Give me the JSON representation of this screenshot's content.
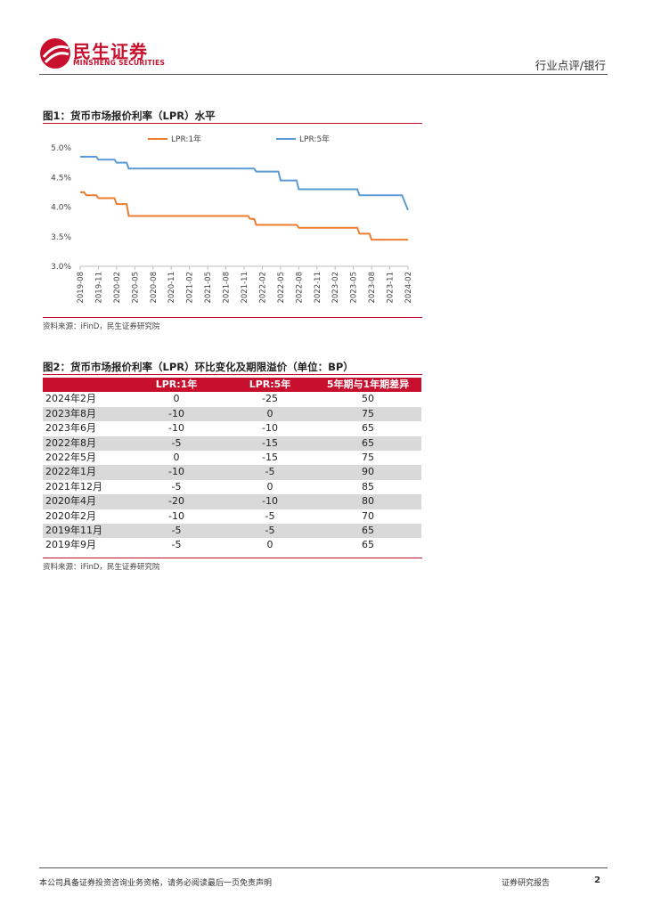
{
  "header": {
    "logo_cn": "民生证券",
    "logo_en": "MINSHENG SECURITIES",
    "category": "行业点评/银行",
    "brand_color": "#c8102e"
  },
  "figure1": {
    "title": "图1：货币市场报价利率（LPR）水平",
    "source": "资料来源：iFinD，民生证券研究院",
    "chart_data": {
      "type": "line",
      "title": "",
      "xlabel": "",
      "ylabel": "",
      "ylim": [
        3.0,
        5.0
      ],
      "y_ticks": [
        "3.0%",
        "3.5%",
        "4.0%",
        "4.5%",
        "5.0%"
      ],
      "x_ticks": [
        "2019-08",
        "2019-11",
        "2020-02",
        "2020-05",
        "2020-08",
        "2020-11",
        "2021-02",
        "2021-05",
        "2021-08",
        "2021-11",
        "2022-02",
        "2022-05",
        "2022-08",
        "2022-11",
        "2023-02",
        "2023-05",
        "2023-08",
        "2023-11",
        "2024-02"
      ],
      "legend_position": "top-center",
      "grid": false,
      "x": [
        "2019-08",
        "2019-09",
        "2019-10",
        "2019-11",
        "2019-12",
        "2020-01",
        "2020-02",
        "2020-03",
        "2020-04",
        "2020-05",
        "2020-06",
        "2020-07",
        "2020-08",
        "2020-09",
        "2020-10",
        "2020-11",
        "2020-12",
        "2021-01",
        "2021-02",
        "2021-03",
        "2021-04",
        "2021-05",
        "2021-06",
        "2021-07",
        "2021-08",
        "2021-09",
        "2021-10",
        "2021-11",
        "2021-12",
        "2022-01",
        "2022-02",
        "2022-03",
        "2022-04",
        "2022-05",
        "2022-06",
        "2022-07",
        "2022-08",
        "2022-09",
        "2022-10",
        "2022-11",
        "2022-12",
        "2023-01",
        "2023-02",
        "2023-03",
        "2023-04",
        "2023-05",
        "2023-06",
        "2023-07",
        "2023-08",
        "2023-09",
        "2023-10",
        "2023-11",
        "2023-12",
        "2024-01",
        "2024-02"
      ],
      "series": [
        {
          "name": "LPR:1年",
          "color": "#ed7d31",
          "values": [
            4.25,
            4.2,
            4.2,
            4.15,
            4.15,
            4.15,
            4.05,
            4.05,
            3.85,
            3.85,
            3.85,
            3.85,
            3.85,
            3.85,
            3.85,
            3.85,
            3.85,
            3.85,
            3.85,
            3.85,
            3.85,
            3.85,
            3.85,
            3.85,
            3.85,
            3.85,
            3.85,
            3.85,
            3.8,
            3.7,
            3.7,
            3.7,
            3.7,
            3.7,
            3.7,
            3.7,
            3.65,
            3.65,
            3.65,
            3.65,
            3.65,
            3.65,
            3.65,
            3.65,
            3.65,
            3.65,
            3.55,
            3.55,
            3.45,
            3.45,
            3.45,
            3.45,
            3.45,
            3.45,
            3.45
          ]
        },
        {
          "name": "LPR:5年",
          "color": "#5b9bd5",
          "values": [
            4.85,
            4.85,
            4.85,
            4.8,
            4.8,
            4.8,
            4.75,
            4.75,
            4.65,
            4.65,
            4.65,
            4.65,
            4.65,
            4.65,
            4.65,
            4.65,
            4.65,
            4.65,
            4.65,
            4.65,
            4.65,
            4.65,
            4.65,
            4.65,
            4.65,
            4.65,
            4.65,
            4.65,
            4.65,
            4.6,
            4.6,
            4.6,
            4.6,
            4.45,
            4.45,
            4.45,
            4.3,
            4.3,
            4.3,
            4.3,
            4.3,
            4.3,
            4.3,
            4.3,
            4.3,
            4.3,
            4.2,
            4.2,
            4.2,
            4.2,
            4.2,
            4.2,
            4.2,
            4.2,
            3.95
          ]
        }
      ]
    }
  },
  "figure2": {
    "title": "图2：货币市场报价利率（LPR）环比变化及期限溢价（单位：BP）",
    "source": "资料来源：iFinD，民生证券研究院",
    "columns": [
      "",
      "LPR:1年",
      "LPR:5年",
      "5年期与1年期差异"
    ],
    "rows": [
      [
        "2024年2月",
        "0",
        "-25",
        "50"
      ],
      [
        "2023年8月",
        "-10",
        "0",
        "75"
      ],
      [
        "2023年6月",
        "-10",
        "-10",
        "65"
      ],
      [
        "2022年8月",
        "-5",
        "-15",
        "65"
      ],
      [
        "2022年5月",
        "0",
        "-15",
        "75"
      ],
      [
        "2022年1月",
        "-10",
        "-5",
        "90"
      ],
      [
        "2021年12月",
        "-5",
        "0",
        "85"
      ],
      [
        "2020年4月",
        "-20",
        "-10",
        "80"
      ],
      [
        "2020年2月",
        "-10",
        "-5",
        "70"
      ],
      [
        "2019年11月",
        "-5",
        "-5",
        "65"
      ],
      [
        "2019年9月",
        "-5",
        "0",
        "65"
      ]
    ]
  },
  "footer": {
    "disclaimer": "本公司具备证券投资咨询业务资格，请务必阅读最后一页免责声明",
    "report_type": "证券研究报告",
    "page_number": "2"
  }
}
